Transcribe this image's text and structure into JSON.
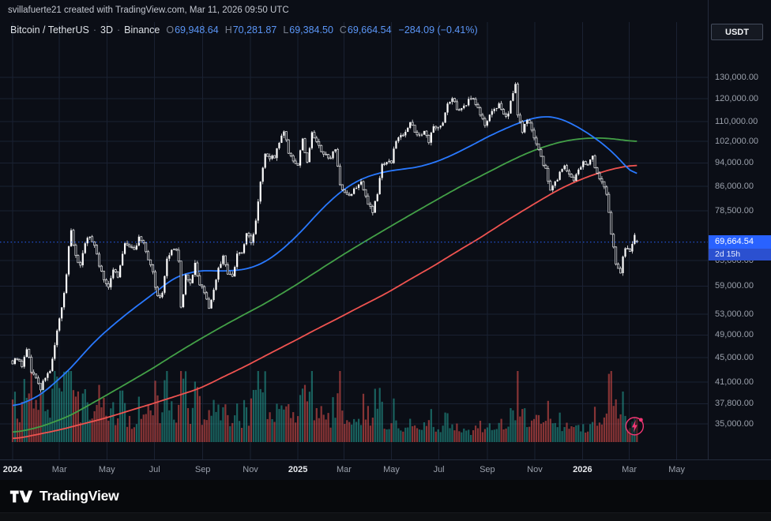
{
  "attribution": "svillafuerte21 created with TradingView.com, Mar 11, 2026 09:50 UTC",
  "header": {
    "symbol": "Bitcoin / TetherUS",
    "separator": "·",
    "interval": "3D",
    "exchange": "Binance",
    "ohlc": [
      {
        "label": "O",
        "value": "69,948.64"
      },
      {
        "label": "H",
        "value": "70,281.87"
      },
      {
        "label": "L",
        "value": "69,384.50"
      },
      {
        "label": "C",
        "value": "69,664.54"
      }
    ],
    "change": "−284.09 (−0.41%)"
  },
  "price_axis": {
    "currency": "USDT",
    "last": {
      "label": "69,664.54",
      "countdown": "2d 15h"
    }
  },
  "footer": {
    "brand": "TradingView"
  },
  "colors": {
    "bg": "#0b0e16",
    "grid": "#1a2132",
    "axis_border": "#242b3b",
    "text_muted": "#9aa0ab",
    "text_bright": "#e8eaee",
    "accent": "#2962ff",
    "badge_countdown": "#2b50d0",
    "candle_up": "#ffffff",
    "candle_down": "#0b0e16",
    "wick": "#e9eaec",
    "vol_up": "rgba(38,166,154,0.55)",
    "vol_down": "rgba(239,83,80,0.55)",
    "ma_fast": "#2979ff",
    "ma_mid": "#43a047",
    "ma_slow": "#ef5350",
    "marker": "#f23674"
  },
  "chart_data": {
    "type": "candlestick",
    "title": "Bitcoin / TetherUS · 3D · Binance",
    "scale": "log",
    "n_candles": 268,
    "seed": 9,
    "noise": 0.009,
    "wick": 0.011,
    "last_candle": {
      "o": 69948.64,
      "h": 70281.87,
      "l": 69384.5,
      "c": 69664.54,
      "change": -284.09,
      "change_pct": -0.41
    },
    "axis_map": {
      "x0": 16,
      "dx": 2.96,
      "y_ref": [
        [
          130000,
          98
        ],
        [
          35000,
          537
        ]
      ]
    },
    "y_ticks": [
      {
        "price": 130000,
        "label": "130,000.00"
      },
      {
        "price": 120000,
        "label": "120,000.00"
      },
      {
        "price": 110000,
        "label": "110,000.00"
      },
      {
        "price": 102000,
        "label": "102,000.00"
      },
      {
        "price": 94000,
        "label": "94,000.00"
      },
      {
        "price": 86000,
        "label": "86,000.00"
      },
      {
        "price": 78500,
        "label": "78,500.00"
      },
      {
        "price": 65000,
        "label": "65,000.00"
      },
      {
        "price": 59000,
        "label": "59,000.00"
      },
      {
        "price": 53000,
        "label": "53,000.00"
      },
      {
        "price": 49000,
        "label": "49,000.00"
      },
      {
        "price": 45000,
        "label": "45,000.00"
      },
      {
        "price": 41000,
        "label": "41,000.00"
      },
      {
        "price": 37800,
        "label": "37,800.00"
      },
      {
        "price": 35000,
        "label": "35,000.00"
      }
    ],
    "x_labels": [
      {
        "label": "2024",
        "idx": 0,
        "bold": true
      },
      {
        "label": "Mar",
        "idx": 20,
        "bold": false
      },
      {
        "label": "May",
        "idx": 40.3,
        "bold": false
      },
      {
        "label": "Jul",
        "idx": 60.7,
        "bold": false
      },
      {
        "label": "Sep",
        "idx": 81.3,
        "bold": false
      },
      {
        "label": "Nov",
        "idx": 101.7,
        "bold": false
      },
      {
        "label": "2025",
        "idx": 122,
        "bold": true
      },
      {
        "label": "Mar",
        "idx": 141.7,
        "bold": false
      },
      {
        "label": "May",
        "idx": 162,
        "bold": false
      },
      {
        "label": "Jul",
        "idx": 182.3,
        "bold": false
      },
      {
        "label": "Sep",
        "idx": 203,
        "bold": false
      },
      {
        "label": "Nov",
        "idx": 223.3,
        "bold": false
      },
      {
        "label": "2026",
        "idx": 243.7,
        "bold": true
      },
      {
        "label": "Mar",
        "idx": 263.7,
        "bold": false
      },
      {
        "label": "May",
        "idx": 284,
        "bold": false
      }
    ],
    "close_keyframes": [
      [
        0,
        44168
      ],
      [
        2,
        44957
      ],
      [
        4,
        43288
      ],
      [
        6,
        46627
      ],
      [
        8,
        42848
      ],
      [
        10,
        41500
      ],
      [
        12,
        39963
      ],
      [
        14,
        41822
      ],
      [
        16,
        42657
      ],
      [
        18,
        47132
      ],
      [
        20,
        51839
      ],
      [
        22,
        57085
      ],
      [
        23,
        61987
      ],
      [
        24,
        68330
      ],
      [
        25,
        73080
      ],
      [
        27,
        65790
      ],
      [
        29,
        63790
      ],
      [
        31,
        69880
      ],
      [
        33,
        70870
      ],
      [
        35,
        69360
      ],
      [
        37,
        63840
      ],
      [
        39,
        60636
      ],
      [
        41,
        58250
      ],
      [
        43,
        63160
      ],
      [
        45,
        61190
      ],
      [
        47,
        66270
      ],
      [
        48,
        69260
      ],
      [
        50,
        68350
      ],
      [
        52,
        67760
      ],
      [
        54,
        70570
      ],
      [
        56,
        69310
      ],
      [
        58,
        64960
      ],
      [
        60,
        61810
      ],
      [
        62,
        56620
      ],
      [
        64,
        57340
      ],
      [
        66,
        64870
      ],
      [
        68,
        67160
      ],
      [
        70,
        67910
      ],
      [
        71,
        64620
      ],
      [
        72,
        54020
      ],
      [
        74,
        61070
      ],
      [
        76,
        59350
      ],
      [
        78,
        64090
      ],
      [
        80,
        59010
      ],
      [
        82,
        57970
      ],
      [
        84,
        54140
      ],
      [
        86,
        58130
      ],
      [
        88,
        63210
      ],
      [
        90,
        65790
      ],
      [
        92,
        61640
      ],
      [
        94,
        60840
      ],
      [
        96,
        67050
      ],
      [
        98,
        66640
      ],
      [
        100,
        72340
      ],
      [
        102,
        69290
      ],
      [
        104,
        75630
      ],
      [
        106,
        88050
      ],
      [
        108,
        97900
      ],
      [
        110,
        95880
      ],
      [
        112,
        96400
      ],
      [
        114,
        101110
      ],
      [
        116,
        106140
      ],
      [
        118,
        97460
      ],
      [
        120,
        94160
      ],
      [
        122,
        93530
      ],
      [
        124,
        102260
      ],
      [
        126,
        94560
      ],
      [
        128,
        104820
      ],
      [
        130,
        102080
      ],
      [
        132,
        97690
      ],
      [
        134,
        96560
      ],
      [
        136,
        96580
      ],
      [
        138,
        98310
      ],
      [
        140,
        86070
      ],
      [
        141,
        84350
      ],
      [
        143,
        82920
      ],
      [
        145,
        83670
      ],
      [
        147,
        86090
      ],
      [
        149,
        87520
      ],
      [
        151,
        82380
      ],
      [
        154,
        78430
      ],
      [
        156,
        83660
      ],
      [
        158,
        93440
      ],
      [
        160,
        94710
      ],
      [
        162,
        94270
      ],
      [
        164,
        102810
      ],
      [
        166,
        104110
      ],
      [
        168,
        106450
      ],
      [
        170,
        109600
      ],
      [
        172,
        105640
      ],
      [
        174,
        104700
      ],
      [
        176,
        105550
      ],
      [
        178,
        101570
      ],
      [
        180,
        107780
      ],
      [
        182,
        108380
      ],
      [
        184,
        109230
      ],
      [
        186,
        117520
      ],
      [
        188,
        119840
      ],
      [
        190,
        115870
      ],
      [
        192,
        114720
      ],
      [
        194,
        117390
      ],
      [
        196,
        121050
      ],
      [
        198,
        117990
      ],
      [
        200,
        113100
      ],
      [
        202,
        108370
      ],
      [
        204,
        111970
      ],
      [
        206,
        115740
      ],
      [
        208,
        116870
      ],
      [
        210,
        112080
      ],
      [
        212,
        114060
      ],
      [
        214,
        123280
      ],
      [
        215,
        125900
      ],
      [
        216,
        112220
      ],
      [
        218,
        106450
      ],
      [
        220,
        110060
      ],
      [
        222,
        107070
      ],
      [
        224,
        101320
      ],
      [
        226,
        95940
      ],
      [
        228,
        91280
      ],
      [
        230,
        84650
      ],
      [
        232,
        87280
      ],
      [
        234,
        90480
      ],
      [
        236,
        93170
      ],
      [
        238,
        89760
      ],
      [
        240,
        87550
      ],
      [
        242,
        91310
      ],
      [
        244,
        94800
      ],
      [
        246,
        93790
      ],
      [
        248,
        96120
      ],
      [
        250,
        90150
      ],
      [
        252,
        87420
      ],
      [
        254,
        82790
      ],
      [
        256,
        71940
      ],
      [
        258,
        64120
      ],
      [
        260,
        62480
      ],
      [
        261,
        65900
      ],
      [
        262,
        68340
      ],
      [
        264,
        66790
      ],
      [
        266,
        71260
      ],
      [
        267,
        69664.54
      ]
    ],
    "ma_fast": {
      "keyframes": [
        [
          0,
          37200
        ],
        [
          12,
          39000
        ],
        [
          24,
          42800
        ],
        [
          36,
          48200
        ],
        [
          48,
          52800
        ],
        [
          60,
          57200
        ],
        [
          70,
          61200
        ],
        [
          80,
          62600
        ],
        [
          90,
          62400
        ],
        [
          100,
          62800
        ],
        [
          108,
          64500
        ],
        [
          116,
          68000
        ],
        [
          124,
          72800
        ],
        [
          132,
          78800
        ],
        [
          140,
          84200
        ],
        [
          148,
          88200
        ],
        [
          156,
          90400
        ],
        [
          164,
          91600
        ],
        [
          172,
          92300
        ],
        [
          180,
          94000
        ],
        [
          188,
          96800
        ],
        [
          196,
          100300
        ],
        [
          204,
          104200
        ],
        [
          212,
          107600
        ],
        [
          218,
          110000
        ],
        [
          224,
          111800
        ],
        [
          230,
          112300
        ],
        [
          236,
          110600
        ],
        [
          242,
          107600
        ],
        [
          248,
          104000
        ],
        [
          254,
          100000
        ],
        [
          260,
          95000
        ],
        [
          267,
          88200
        ]
      ]
    },
    "ma_mid": {
      "keyframes": [
        [
          0,
          33800
        ],
        [
          12,
          34600
        ],
        [
          24,
          36000
        ],
        [
          36,
          38200
        ],
        [
          48,
          40600
        ],
        [
          60,
          43200
        ],
        [
          72,
          46200
        ],
        [
          84,
          49200
        ],
        [
          96,
          52200
        ],
        [
          108,
          55200
        ],
        [
          120,
          58800
        ],
        [
          132,
          63000
        ],
        [
          144,
          67400
        ],
        [
          156,
          71800
        ],
        [
          168,
          76400
        ],
        [
          180,
          81200
        ],
        [
          192,
          86200
        ],
        [
          204,
          91000
        ],
        [
          212,
          94400
        ],
        [
          220,
          97600
        ],
        [
          228,
          100200
        ],
        [
          236,
          102200
        ],
        [
          244,
          103200
        ],
        [
          252,
          103400
        ],
        [
          258,
          102900
        ],
        [
          267,
          101800
        ]
      ]
    },
    "ma_slow": {
      "keyframes": [
        [
          0,
          33000
        ],
        [
          20,
          34200
        ],
        [
          40,
          35800
        ],
        [
          60,
          37800
        ],
        [
          80,
          40000
        ],
        [
          100,
          43600
        ],
        [
          120,
          47800
        ],
        [
          140,
          52400
        ],
        [
          160,
          57400
        ],
        [
          180,
          63600
        ],
        [
          200,
          70800
        ],
        [
          220,
          79200
        ],
        [
          235,
          85600
        ],
        [
          245,
          89000
        ],
        [
          255,
          91600
        ],
        [
          262,
          92800
        ],
        [
          267,
          93400
        ]
      ]
    },
    "volume": {
      "baseline_y": 560,
      "max_h": 90,
      "mult_keyframes": [
        [
          0,
          1.9
        ],
        [
          24,
          1.9
        ],
        [
          40,
          1.3
        ],
        [
          72,
          1.6
        ],
        [
          90,
          1.1
        ],
        [
          104,
          1.6
        ],
        [
          120,
          1.3
        ],
        [
          134,
          1.6
        ],
        [
          150,
          1.5
        ],
        [
          162,
          1.0
        ],
        [
          185,
          0.85
        ],
        [
          204,
          0.7
        ],
        [
          216,
          1.1
        ],
        [
          230,
          0.95
        ],
        [
          245,
          0.7
        ],
        [
          256,
          1.5
        ],
        [
          262,
          1.0
        ],
        [
          267,
          0.8
        ]
      ]
    },
    "marker": {
      "idx": 266,
      "price": 34700
    }
  }
}
